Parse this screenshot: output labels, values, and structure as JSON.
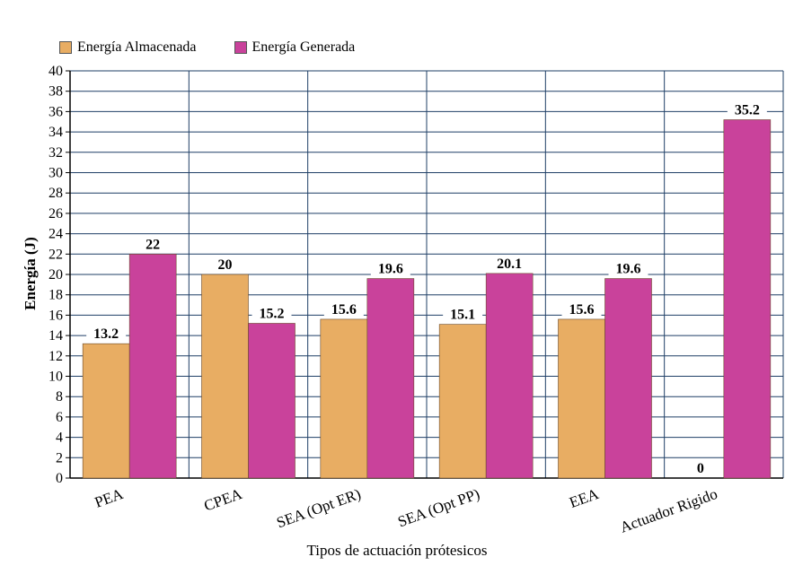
{
  "chart_data": {
    "type": "bar",
    "categories": [
      "PEA",
      "CPEA",
      "SEA (Opt ER)",
      "SEA (Opt PP)",
      "EEA",
      "Actuador Rigido"
    ],
    "series": [
      {
        "name": "Energía Almacenada",
        "values": [
          13.2,
          20,
          15.6,
          15.1,
          15.6,
          0
        ],
        "color": "#E8AD63"
      },
      {
        "name": "Energía Generada",
        "values": [
          22,
          15.2,
          19.6,
          20.1,
          19.6,
          35.2
        ],
        "color": "#C9429B"
      }
    ],
    "data_labels": [
      [
        "13.2",
        "20",
        "15.6",
        "15.1",
        "15.6",
        "0"
      ],
      [
        "22",
        "15.2",
        "19.6",
        "20.1",
        "19.6",
        "35.2"
      ]
    ],
    "xlabel": "Tipos de actuación prótesicos",
    "ylabel": "Energía (J)",
    "ylim": [
      0,
      40
    ],
    "ytick_step": 2,
    "grid": true,
    "legend_position": "top-left",
    "grid_color": "#1F3F66"
  }
}
